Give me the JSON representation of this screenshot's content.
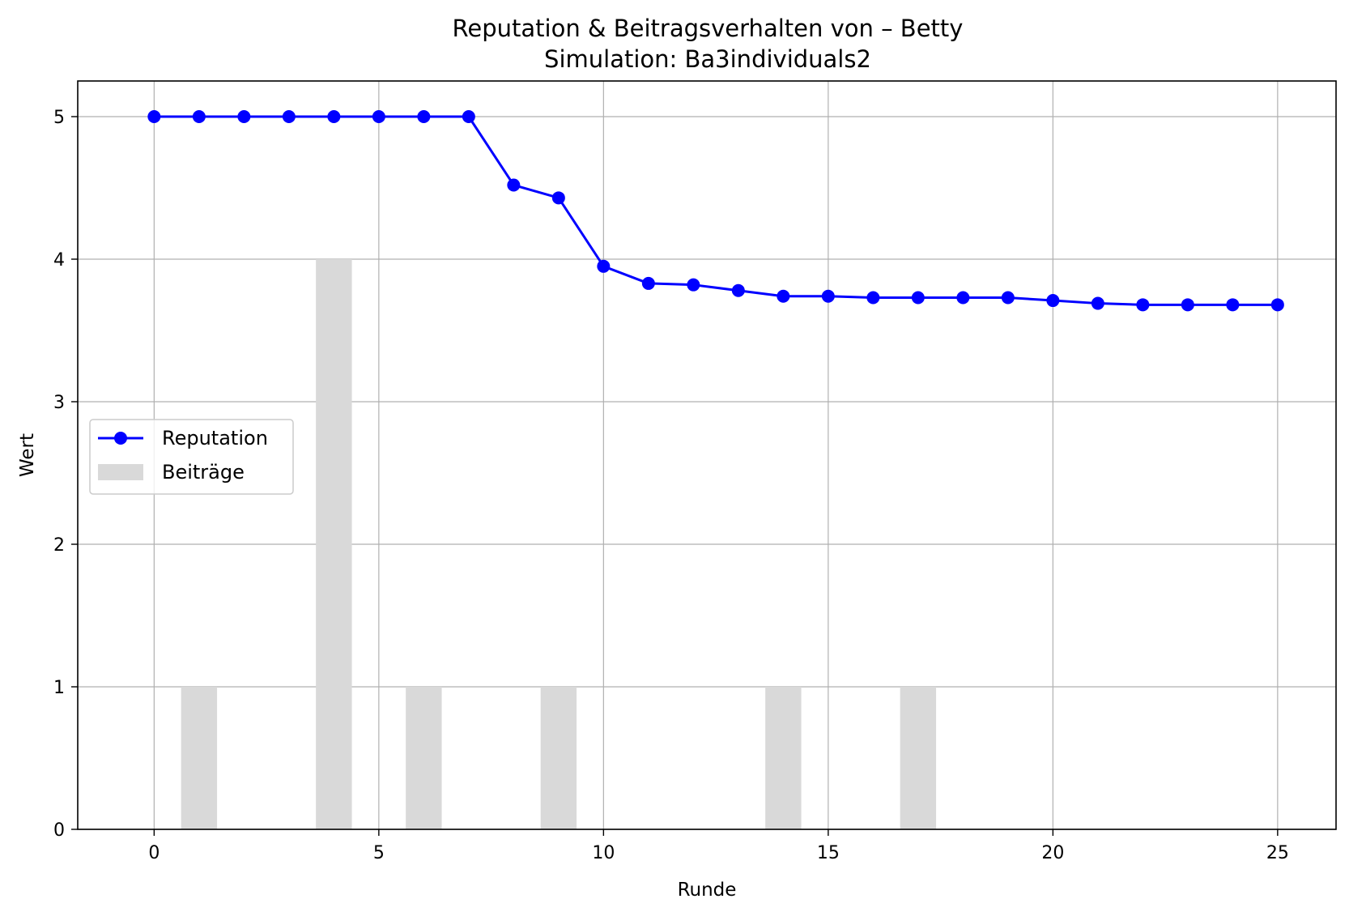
{
  "chart_data": {
    "type": "bar+line",
    "title": "Reputation & Beitragsverhalten von – Betty",
    "subtitle": "Simulation: Ba3individuals2",
    "xlabel": "Runde",
    "ylabel": "Wert",
    "xlim": [
      -1.7,
      26.3
    ],
    "ylim": [
      0,
      5.25
    ],
    "xticks": [
      0,
      5,
      10,
      15,
      20,
      25
    ],
    "yticks": [
      0,
      1,
      2,
      3,
      4,
      5
    ],
    "grid": true,
    "legend_position": "center-left",
    "series": [
      {
        "name": "Reputation",
        "kind": "line",
        "marker": "circle",
        "color": "#0000ff",
        "x": [
          0,
          1,
          2,
          3,
          4,
          5,
          6,
          7,
          8,
          9,
          10,
          11,
          12,
          13,
          14,
          15,
          16,
          17,
          18,
          19,
          20,
          21,
          22,
          23,
          24,
          25
        ],
        "values": [
          5.0,
          5.0,
          5.0,
          5.0,
          5.0,
          5.0,
          5.0,
          5.0,
          4.52,
          4.43,
          3.95,
          3.83,
          3.82,
          3.78,
          3.74,
          3.74,
          3.73,
          3.73,
          3.73,
          3.73,
          3.71,
          3.69,
          3.68,
          3.68,
          3.68,
          3.68
        ]
      },
      {
        "name": "Beiträge",
        "kind": "bar",
        "color": "#d9d9d9",
        "x": [
          1,
          4,
          6,
          9,
          14,
          17
        ],
        "values": [
          1,
          4,
          1,
          1,
          1,
          1
        ]
      }
    ]
  }
}
